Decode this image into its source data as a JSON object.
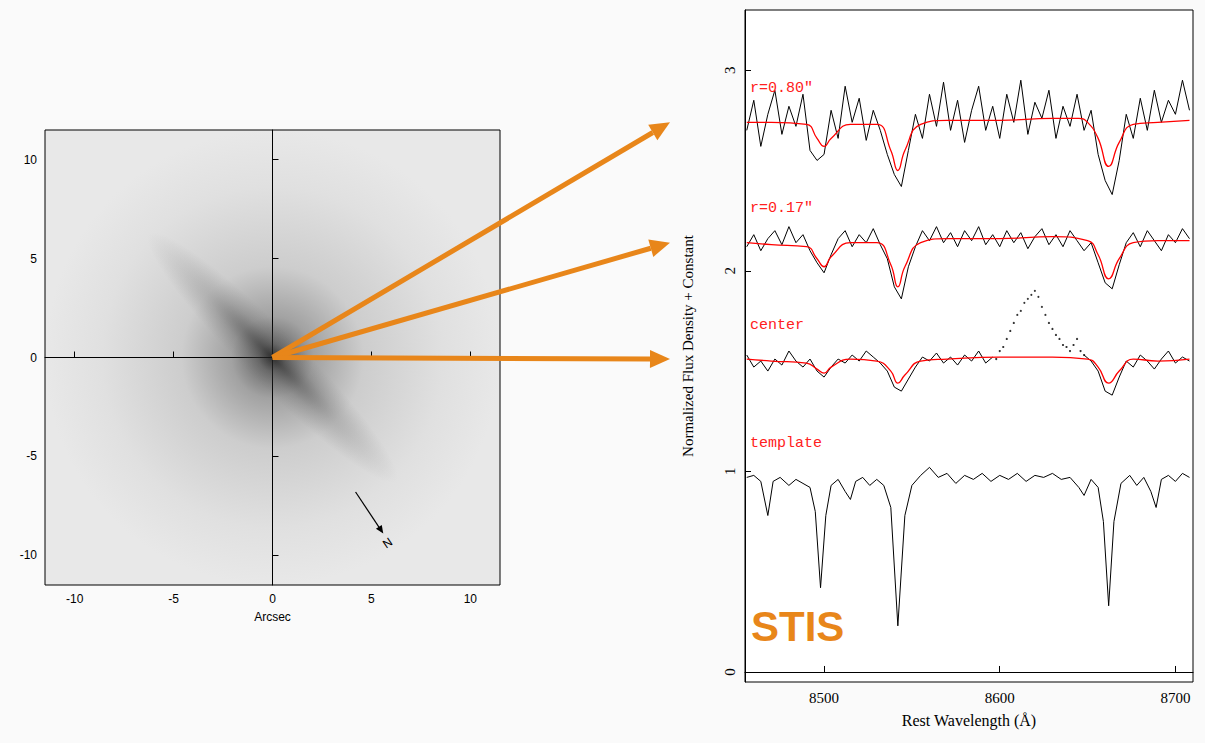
{
  "chart_data": [
    {
      "type": "image",
      "x_label": "Arcsec",
      "xlim": [
        -11.5,
        11.5
      ],
      "ylim": [
        -11.5,
        11.5
      ],
      "xticks": [
        -10,
        -5,
        0,
        5,
        10
      ],
      "yticks": [
        -10,
        -5,
        0,
        5,
        10
      ],
      "annotations": [
        {
          "text": "N"
        }
      ]
    },
    {
      "type": "line",
      "x_label": "Rest Wavelength (Å)",
      "y_label": "Normalized Flux Density + Constant",
      "xlim": [
        8455,
        8710
      ],
      "ylim": [
        -0.05,
        3.3
      ],
      "xticks": [
        8500,
        8600,
        8700
      ],
      "yticks": [
        0,
        1,
        2,
        3
      ],
      "annotations": [
        {
          "text": "STIS"
        }
      ],
      "series": [
        {
          "name": "r=0.80″",
          "color": "#000000",
          "x": [
            8456,
            8460,
            8464,
            8468,
            8472,
            8476,
            8480,
            8484,
            8488,
            8492,
            8496,
            8500,
            8504,
            8508,
            8512,
            8516,
            8520,
            8524,
            8528,
            8532,
            8536,
            8540,
            8544,
            8548,
            8552,
            8556,
            8560,
            8564,
            8568,
            8572,
            8576,
            8580,
            8584,
            8588,
            8592,
            8596,
            8600,
            8604,
            8608,
            8612,
            8616,
            8620,
            8624,
            8628,
            8632,
            8636,
            8640,
            8644,
            8648,
            8652,
            8656,
            8660,
            8664,
            8668,
            8672,
            8676,
            8680,
            8684,
            8688,
            8692,
            8696,
            8700,
            8704,
            8708
          ],
          "values": [
            2.7,
            2.85,
            2.62,
            2.78,
            2.9,
            2.68,
            2.82,
            2.72,
            2.88,
            2.6,
            2.55,
            2.58,
            2.8,
            2.66,
            2.92,
            2.74,
            2.86,
            2.65,
            2.8,
            2.7,
            2.58,
            2.48,
            2.42,
            2.6,
            2.78,
            2.66,
            2.88,
            2.72,
            2.94,
            2.7,
            2.85,
            2.64,
            2.8,
            2.92,
            2.7,
            2.82,
            2.66,
            2.88,
            2.74,
            2.95,
            2.68,
            2.84,
            2.76,
            2.9,
            2.66,
            2.82,
            2.72,
            2.88,
            2.7,
            2.8,
            2.58,
            2.45,
            2.38,
            2.55,
            2.78,
            2.66,
            2.86,
            2.7,
            2.9,
            2.74,
            2.85,
            2.78,
            2.95,
            2.8
          ],
          "fit": {
            "color": "#ff0000",
            "x": [
              8456,
              8470,
              8490,
              8496,
              8500,
              8504,
              8515,
              8530,
              8538,
              8542,
              8546,
              8555,
              8570,
              8600,
              8630,
              8645,
              8650,
              8656,
              8662,
              8668,
              8676,
              8690,
              8708
            ],
            "values": [
              2.74,
              2.74,
              2.73,
              2.66,
              2.62,
              2.66,
              2.73,
              2.73,
              2.6,
              2.5,
              2.6,
              2.73,
              2.75,
              2.75,
              2.76,
              2.76,
              2.74,
              2.66,
              2.52,
              2.64,
              2.73,
              2.74,
              2.75
            ]
          }
        },
        {
          "name": "r=0.17″",
          "color": "#000000",
          "x": [
            8456,
            8460,
            8464,
            8468,
            8472,
            8476,
            8480,
            8484,
            8488,
            8492,
            8496,
            8500,
            8504,
            8508,
            8512,
            8516,
            8520,
            8524,
            8528,
            8532,
            8536,
            8540,
            8544,
            8548,
            8552,
            8556,
            8560,
            8564,
            8568,
            8572,
            8576,
            8580,
            8584,
            8588,
            8592,
            8596,
            8600,
            8604,
            8608,
            8612,
            8616,
            8620,
            8624,
            8628,
            8632,
            8636,
            8640,
            8644,
            8648,
            8652,
            8656,
            8660,
            8664,
            8668,
            8672,
            8676,
            8680,
            8684,
            8688,
            8692,
            8696,
            8700,
            8704,
            8708
          ],
          "values": [
            2.12,
            2.18,
            2.1,
            2.16,
            2.2,
            2.13,
            2.22,
            2.14,
            2.18,
            2.1,
            2.04,
            1.99,
            2.08,
            2.16,
            2.2,
            2.12,
            2.18,
            2.14,
            2.21,
            2.13,
            2.06,
            1.92,
            1.86,
            2.02,
            2.12,
            2.2,
            2.15,
            2.22,
            2.14,
            2.19,
            2.12,
            2.2,
            2.15,
            2.22,
            2.13,
            2.18,
            2.12,
            2.2,
            2.14,
            2.19,
            2.11,
            2.17,
            2.21,
            2.13,
            2.18,
            2.12,
            2.2,
            2.15,
            2.1,
            2.14,
            2.04,
            1.94,
            1.91,
            2.03,
            2.14,
            2.19,
            2.12,
            2.2,
            2.15,
            2.1,
            2.18,
            2.14,
            2.21,
            2.16
          ],
          "fit": {
            "color": "#ff0000",
            "x": [
              8456,
              8470,
              8490,
              8496,
              8500,
              8504,
              8515,
              8530,
              8538,
              8542,
              8546,
              8555,
              8570,
              8600,
              8630,
              8650,
              8656,
              8662,
              8668,
              8676,
              8690,
              8708
            ],
            "values": [
              2.14,
              2.13,
              2.12,
              2.06,
              2.02,
              2.07,
              2.14,
              2.14,
              2.03,
              1.92,
              2.02,
              2.14,
              2.16,
              2.16,
              2.17,
              2.15,
              2.08,
              1.96,
              2.06,
              2.14,
              2.15,
              2.15
            ]
          }
        },
        {
          "name": "center",
          "color": "#000000",
          "x": [
            8456,
            8460,
            8464,
            8468,
            8472,
            8476,
            8480,
            8484,
            8488,
            8492,
            8496,
            8500,
            8504,
            8508,
            8512,
            8516,
            8520,
            8524,
            8528,
            8532,
            8536,
            8540,
            8544,
            8548,
            8552,
            8556,
            8560,
            8564,
            8568,
            8572,
            8576,
            8580,
            8584,
            8588,
            8592,
            8596,
            8620,
            8648,
            8652,
            8656,
            8660,
            8664,
            8668,
            8672,
            8676,
            8680,
            8684,
            8688,
            8692,
            8696,
            8700,
            8704,
            8708
          ],
          "values": [
            1.58,
            1.52,
            1.55,
            1.5,
            1.56,
            1.53,
            1.6,
            1.55,
            1.52,
            1.56,
            1.5,
            1.47,
            1.52,
            1.56,
            1.54,
            1.58,
            1.55,
            1.6,
            1.57,
            1.54,
            1.5,
            1.42,
            1.4,
            1.46,
            1.52,
            1.57,
            1.55,
            1.59,
            1.54,
            1.57,
            1.53,
            1.58,
            1.55,
            1.6,
            1.54,
            1.57,
            null,
            1.58,
            1.55,
            1.5,
            1.4,
            1.38,
            1.47,
            1.55,
            1.52,
            1.58,
            1.55,
            1.51,
            1.56,
            1.6,
            1.54,
            1.57,
            1.55
          ],
          "masked": {
            "marker": "dot",
            "x": [
              8598,
              8600,
              8602,
              8604,
              8606,
              8608,
              8610,
              8612,
              8614,
              8616,
              8618,
              8620,
              8622,
              8624,
              8626,
              8628,
              8630,
              8632,
              8634,
              8636,
              8638,
              8640,
              8642,
              8644,
              8646,
              8648
            ],
            "values": [
              1.56,
              1.6,
              1.62,
              1.66,
              1.7,
              1.74,
              1.78,
              1.8,
              1.84,
              1.86,
              1.88,
              1.9,
              1.87,
              1.82,
              1.78,
              1.74,
              1.71,
              1.68,
              1.66,
              1.63,
              1.62,
              1.6,
              1.63,
              1.66,
              1.6,
              1.58
            ]
          },
          "fit": {
            "color": "#ff0000",
            "x": [
              8456,
              8470,
              8490,
              8496,
              8500,
              8504,
              8515,
              8530,
              8538,
              8542,
              8546,
              8555,
              8570,
              8600,
              8630,
              8650,
              8656,
              8662,
              8668,
              8676,
              8690,
              8708
            ],
            "values": [
              1.56,
              1.55,
              1.54,
              1.51,
              1.49,
              1.52,
              1.56,
              1.55,
              1.5,
              1.44,
              1.48,
              1.55,
              1.56,
              1.57,
              1.57,
              1.56,
              1.52,
              1.44,
              1.5,
              1.56,
              1.55,
              1.56
            ]
          }
        },
        {
          "name": "template",
          "color": "#000000",
          "x": [
            8456,
            8460,
            8464,
            8468,
            8471,
            8475,
            8480,
            8484,
            8488,
            8492,
            8495,
            8498,
            8501,
            8504,
            8508,
            8512,
            8515,
            8518,
            8522,
            8526,
            8530,
            8534,
            8538,
            8542,
            8546,
            8550,
            8555,
            8560,
            8565,
            8570,
            8575,
            8580,
            8585,
            8590,
            8595,
            8600,
            8605,
            8610,
            8615,
            8620,
            8625,
            8630,
            8635,
            8640,
            8645,
            8648,
            8652,
            8656,
            8659,
            8662,
            8665,
            8669,
            8674,
            8678,
            8682,
            8686,
            8689,
            8692,
            8696,
            8700,
            8704,
            8708
          ],
          "values": [
            0.97,
            0.98,
            0.95,
            0.78,
            0.95,
            0.97,
            0.93,
            0.96,
            0.94,
            0.92,
            0.8,
            0.42,
            0.78,
            0.93,
            0.96,
            0.9,
            0.86,
            0.95,
            0.97,
            0.93,
            0.96,
            0.93,
            0.82,
            0.23,
            0.78,
            0.93,
            0.98,
            1.02,
            0.97,
            0.99,
            0.94,
            0.98,
            0.96,
            0.99,
            0.95,
            0.98,
            0.96,
            0.99,
            0.95,
            0.98,
            0.97,
            0.99,
            0.96,
            0.97,
            0.92,
            0.88,
            0.96,
            0.92,
            0.75,
            0.33,
            0.75,
            0.94,
            0.98,
            0.93,
            0.97,
            0.9,
            0.82,
            0.96,
            0.98,
            0.95,
            0.99,
            0.97
          ]
        }
      ]
    }
  ]
}
